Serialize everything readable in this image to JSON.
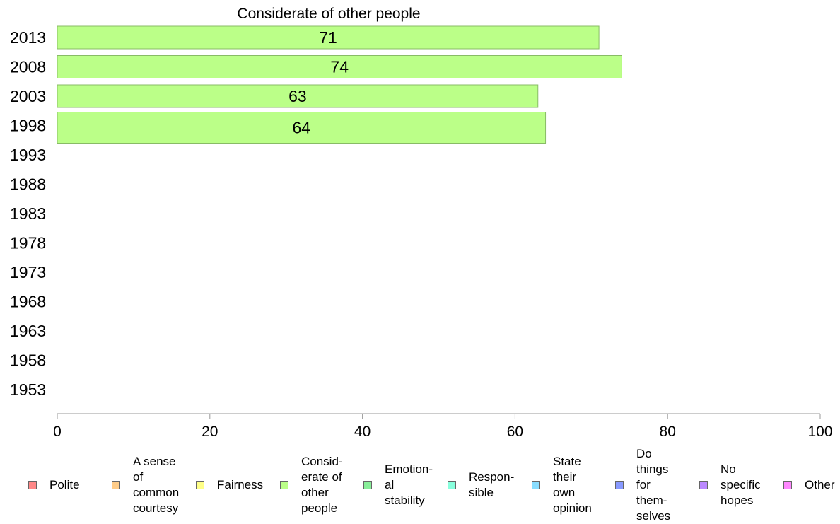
{
  "chart_data": {
    "type": "bar",
    "orientation": "horizontal",
    "title": "Considerate of other people",
    "categories": [
      "2013",
      "2008",
      "2003",
      "1998",
      "1993",
      "1988",
      "1983",
      "1978",
      "1973",
      "1968",
      "1963",
      "1958",
      "1953"
    ],
    "series": [
      {
        "name": "Considerate of other people",
        "values": [
          71,
          74,
          63,
          64,
          null,
          null,
          null,
          null,
          null,
          null,
          null,
          null,
          null
        ]
      }
    ],
    "data_labels": [
      "71",
      "74",
      "63",
      "64",
      "",
      "",
      "",
      "",
      "",
      "",
      "",
      "",
      ""
    ],
    "xlim": [
      0,
      100
    ],
    "xticks": [
      0,
      20,
      40,
      60,
      80,
      100
    ],
    "xlabel": "",
    "ylabel": "",
    "grid": false,
    "bar_color": "#bbff88",
    "bar_stroke": "#88bb66",
    "legend_position": "bottom"
  },
  "legend": [
    {
      "label": "Polite",
      "color": "#ff8888"
    },
    {
      "label": "A sense\nof\ncommon\ncourtesy",
      "color": "#ffcc88"
    },
    {
      "label": "Fairness",
      "color": "#ffff88"
    },
    {
      "label": "Consid-\nerate of\nother\npeople",
      "color": "#bbff88"
    },
    {
      "label": "Emotion-\nal\nstability",
      "color": "#88ee99"
    },
    {
      "label": "Respon-\nsible",
      "color": "#88ffdd"
    },
    {
      "label": "State\ntheir\nown\nopinion",
      "color": "#88ddff"
    },
    {
      "label": "Do\nthings\nfor\nthem-\nselves",
      "color": "#8899ff"
    },
    {
      "label": "No\nspecific\nhopes",
      "color": "#bb88ff"
    },
    {
      "label": "Other",
      "color": "#ff88ff"
    }
  ]
}
